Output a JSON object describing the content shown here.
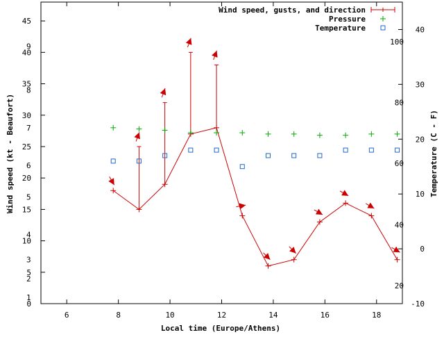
{
  "chart_data": {
    "type": "line",
    "x_label": "Local time (Europe/Athens)",
    "y_label": "Wind speed (kt - Beaufort)",
    "y2_label": "Temperature (C - F)",
    "x_range": [
      5,
      19
    ],
    "y_range": [
      0,
      48
    ],
    "y2_range": [
      -10,
      45
    ],
    "x_ticks": [
      "6",
      "8",
      "10",
      "12",
      "14",
      "16",
      "18"
    ],
    "y_ticks": [
      "0",
      "5",
      "10",
      "15",
      "20",
      "25",
      "30",
      "35",
      "40",
      "45"
    ],
    "y2_ticks": [
      "-10",
      "0",
      "10",
      "20",
      "30",
      "40"
    ],
    "beaufort_scale": [
      {
        "label": "1",
        "kt": 1
      },
      {
        "label": "2",
        "kt": 4
      },
      {
        "label": "3",
        "kt": 7
      },
      {
        "label": "4",
        "kt": 11
      },
      {
        "label": "5",
        "kt": 17
      },
      {
        "label": "6",
        "kt": 22
      },
      {
        "label": "7",
        "kt": 28
      },
      {
        "label": "8",
        "kt": 34
      },
      {
        "label": "9",
        "kt": 41
      }
    ],
    "fahrenheit_scale": [
      {
        "label": "20",
        "c": -6.7
      },
      {
        "label": "40",
        "c": 4.4
      },
      {
        "label": "60",
        "c": 15.6
      },
      {
        "label": "80",
        "c": 26.7
      },
      {
        "label": "100",
        "c": 37.8
      }
    ],
    "legend": [
      {
        "label": "Wind speed, gusts, and direction",
        "color": "#cc0000",
        "marker": "plus"
      },
      {
        "label": "Pressure",
        "color": "#00aa00",
        "marker": "plus"
      },
      {
        "label": "Temperature",
        "color": "#2266cc",
        "marker": "square"
      }
    ],
    "series": [
      {
        "name": "Wind speed",
        "x": [
          7.8,
          8.8,
          9.8,
          10.8,
          11.8,
          12.8,
          13.8,
          14.8,
          15.8,
          16.8,
          17.8,
          18.8
        ],
        "values": [
          18,
          15,
          19,
          27,
          28,
          14,
          6,
          7,
          13,
          16,
          14,
          7
        ],
        "gusts": [
          null,
          25,
          32,
          40,
          38,
          null,
          null,
          null,
          null,
          null,
          null,
          null
        ],
        "direction_deg": [
          330,
          200,
          200,
          200,
          200,
          260,
          315,
          315,
          300,
          300,
          300,
          300
        ]
      },
      {
        "name": "Pressure",
        "x": [
          7.8,
          8.8,
          9.8,
          10.8,
          11.8,
          12.8,
          13.8,
          14.8,
          15.8,
          16.8,
          17.8,
          18.8
        ],
        "values": [
          28,
          27.8,
          27.6,
          27.2,
          27.2,
          27.2,
          27,
          27,
          26.8,
          26.8,
          27,
          27
        ]
      },
      {
        "name": "Temperature",
        "x": [
          7.8,
          8.8,
          9.8,
          10.8,
          11.8,
          12.8,
          13.8,
          14.8,
          15.8,
          16.8,
          17.8,
          18.8
        ],
        "values": [
          16,
          16,
          17,
          18,
          18,
          15,
          17,
          17,
          17,
          18,
          18,
          18
        ]
      }
    ]
  }
}
